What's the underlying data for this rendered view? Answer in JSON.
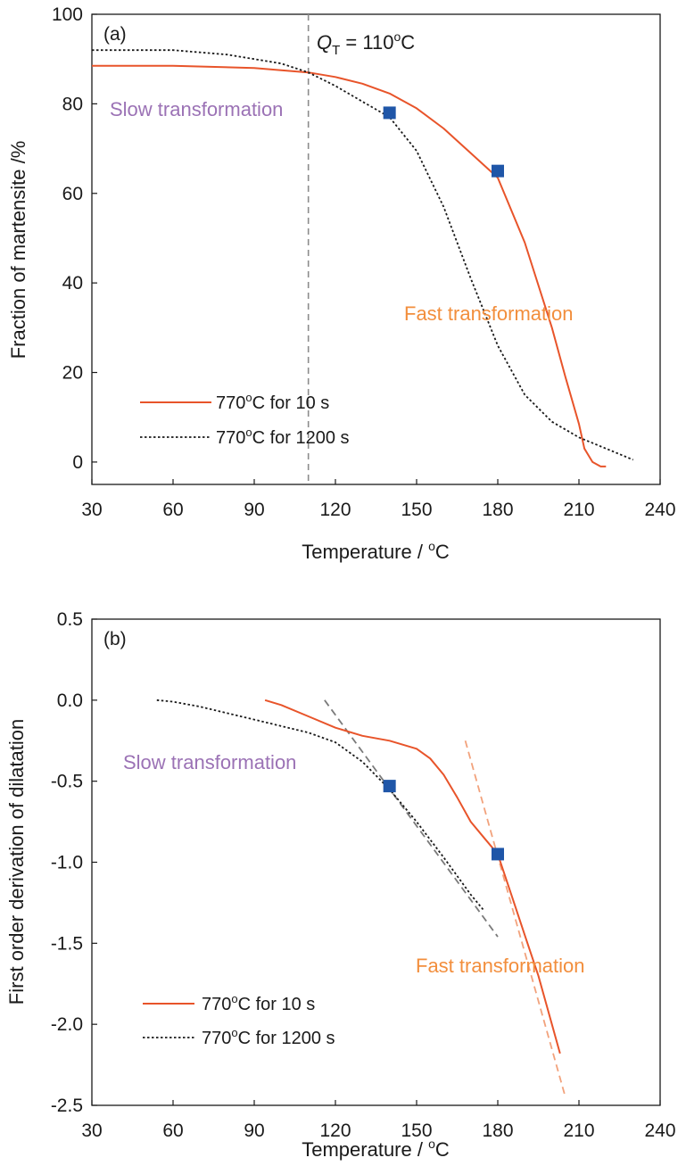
{
  "colors": {
    "series_10s": "#e8542a",
    "series_1200s": "#1a1a1a",
    "marker": "#1f56a8",
    "slow_text": "#9b72b5",
    "fast_text": "#f28e3c",
    "tangent_gray": "#7a7a7a",
    "tangent_orange": "#f2a27c",
    "qt_line": "#8c8c8c"
  },
  "chart_data": [
    {
      "type": "line",
      "panel_label": "(a)",
      "xlabel": "Temperature / °C",
      "ylabel": "Fraction of martensite /%",
      "xlim": [
        30,
        240
      ],
      "ylim": [
        -5,
        100
      ],
      "xticks": [
        30,
        60,
        90,
        120,
        150,
        180,
        210,
        240
      ],
      "yticks": [
        0,
        20,
        40,
        60,
        80,
        100
      ],
      "legend_placement": "bottom-left",
      "series": [
        {
          "name": "770°C for 10 s",
          "style": "solid",
          "x": [
            30,
            60,
            90,
            110,
            120,
            130,
            140,
            150,
            160,
            170,
            180,
            190,
            200,
            205,
            210,
            212,
            215,
            218,
            220
          ],
          "y": [
            88.5,
            88.5,
            88.0,
            87.0,
            86.0,
            84.5,
            82.3,
            79.0,
            74.5,
            69.0,
            63.5,
            49.0,
            30.0,
            19.0,
            8.5,
            3.0,
            0.0,
            -1.0,
            -1.0
          ]
        },
        {
          "name": "770°C for 1200 s",
          "style": "dotted",
          "x": [
            30,
            60,
            80,
            100,
            110,
            120,
            130,
            140,
            150,
            160,
            170,
            180,
            190,
            200,
            210,
            220,
            230
          ],
          "y": [
            92.0,
            92.0,
            91.0,
            89.0,
            87.0,
            84.0,
            80.5,
            77.0,
            69.5,
            57.0,
            41.0,
            26.0,
            15.0,
            9.0,
            5.5,
            3.0,
            0.5
          ]
        }
      ],
      "markers": [
        {
          "x": 140,
          "y": 78
        },
        {
          "x": 180,
          "y": 65
        }
      ],
      "reference_line": {
        "x": 110,
        "label_var": "Q",
        "label_sub": "T",
        "label_rest": " = 110°C"
      },
      "annotations": [
        "Slow transformation",
        "Fast transformation"
      ]
    },
    {
      "type": "line",
      "panel_label": "(b)",
      "xlabel": "Temperature / °C",
      "ylabel": "First order derivation of dilatation",
      "xlim": [
        30,
        240
      ],
      "ylim": [
        -2.5,
        0.5
      ],
      "xticks": [
        30,
        60,
        90,
        120,
        150,
        180,
        210,
        240
      ],
      "yticks": [
        "0.5",
        "0.0",
        "-0.5",
        "-1.0",
        "-1.5",
        "-2.0",
        "-2.5"
      ],
      "legend_placement": "bottom-left",
      "series": [
        {
          "name": "770°C for 10 s",
          "style": "solid",
          "x": [
            94,
            100,
            110,
            120,
            130,
            140,
            150,
            155,
            160,
            165,
            170,
            175,
            180,
            185,
            190,
            195,
            200,
            203
          ],
          "y": [
            0.0,
            -0.03,
            -0.1,
            -0.17,
            -0.22,
            -0.25,
            -0.3,
            -0.36,
            -0.46,
            -0.6,
            -0.75,
            -0.85,
            -0.95,
            -1.2,
            -1.45,
            -1.7,
            -2.0,
            -2.18
          ]
        },
        {
          "name": "770°C for 1200 s",
          "style": "dotted",
          "x": [
            54,
            60,
            70,
            80,
            90,
            100,
            110,
            120,
            130,
            140,
            150,
            160,
            170,
            175
          ],
          "y": [
            0.0,
            -0.01,
            -0.04,
            -0.08,
            -0.12,
            -0.16,
            -0.2,
            -0.26,
            -0.38,
            -0.55,
            -0.75,
            -0.97,
            -1.2,
            -1.3
          ]
        }
      ],
      "tangents": [
        {
          "x": [
            116,
            180
          ],
          "y": [
            0.0,
            -1.46
          ],
          "color": "gray"
        },
        {
          "x": [
            168,
            205
          ],
          "y": [
            -0.25,
            -2.45
          ],
          "color": "orange"
        }
      ],
      "markers": [
        {
          "x": 140,
          "y": -0.53
        },
        {
          "x": 180,
          "y": -0.95
        }
      ],
      "annotations": [
        "Slow transformation",
        "Fast transformation"
      ]
    }
  ],
  "text": {
    "a_xlabel_main": "Temperature / ",
    "a_xlabel_sup": "o",
    "a_xlabel_end": "C",
    "a_ylabel": "Fraction of martensite /%",
    "a_panel": "(a)",
    "a_slow": "Slow transformation",
    "a_fast": "Fast transformation",
    "qt_var": "Q",
    "qt_sub": "T",
    "qt_eq": " = 110",
    "qt_sup": "o",
    "qt_end": "C",
    "b_xlabel_main": "Temperature / ",
    "b_xlabel_sup": "o",
    "b_xlabel_end": "C",
    "b_ylabel": "First order derivation of dilatation",
    "b_panel": "(b)",
    "b_slow": "Slow transformation",
    "b_fast": "Fast transformation",
    "legend_10s_a": "770",
    "legend_10s_sup": "o",
    "legend_10s_b": "C for 10 s",
    "legend_1200s_a": "770",
    "legend_1200s_sup": "o",
    "legend_1200s_b": "C for 1200 s"
  }
}
